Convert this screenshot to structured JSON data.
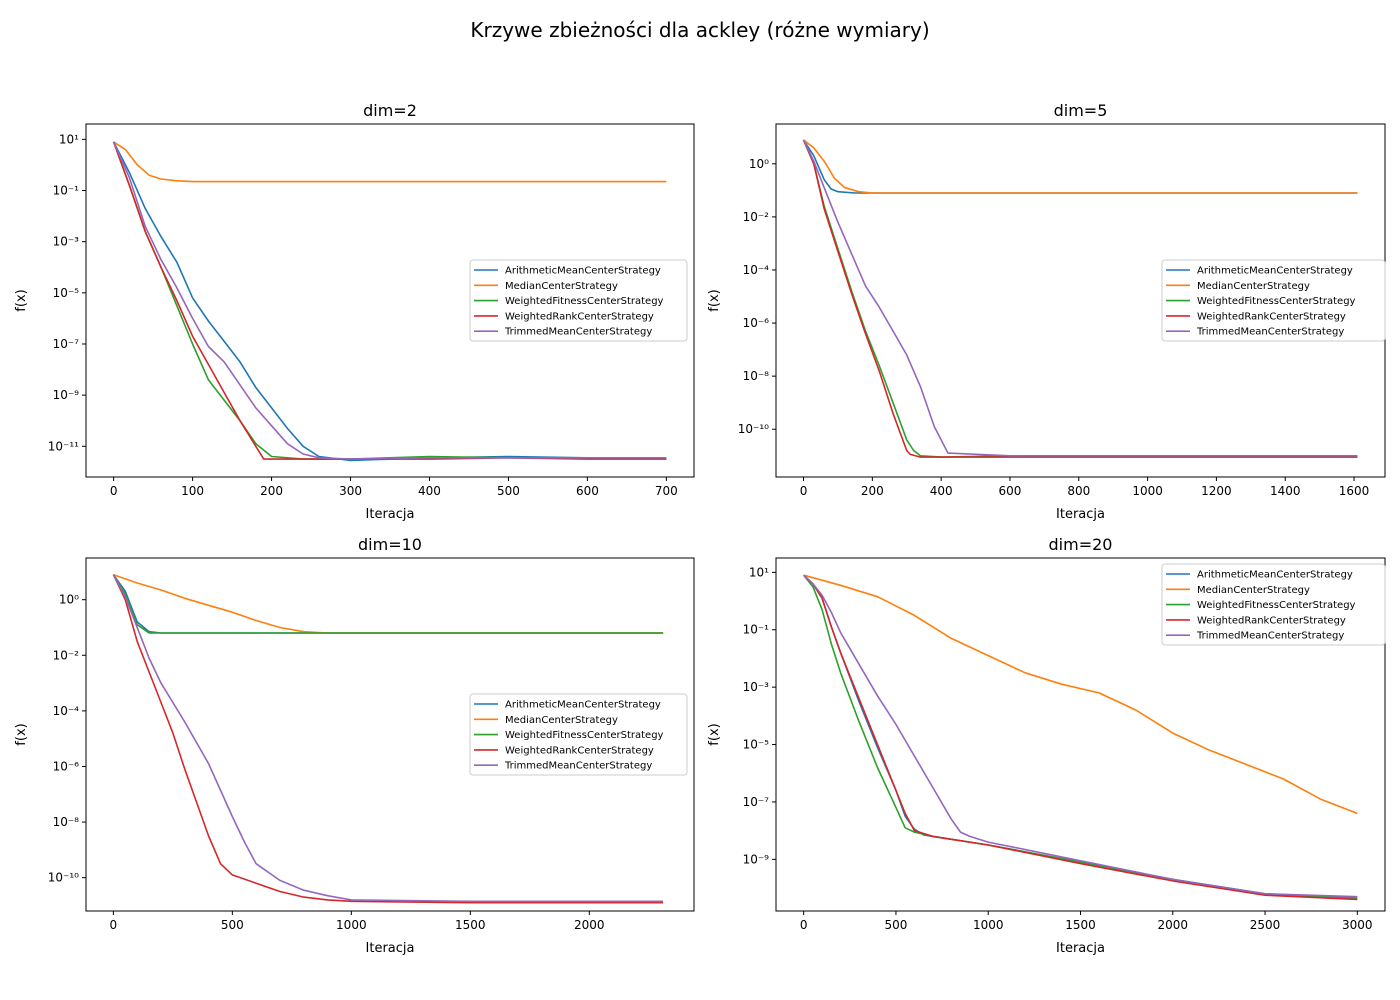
{
  "figure": {
    "suptitle": "Krzywe zbieżności dla ackley (różne wymiary)"
  },
  "series_colors": {
    "ArithmeticMeanCenterStrategy": "#1f77b4",
    "MedianCenterStrategy": "#ff7f0e",
    "WeightedFitnessCenterStrategy": "#2ca02c",
    "WeightedRankCenterStrategy": "#d62728",
    "TrimmedMeanCenterStrategy": "#9467bd"
  },
  "chart_data": [
    {
      "type": "line",
      "title": "dim=2",
      "xlabel": "Iteracja",
      "ylabel": "f(x)",
      "yscale": "log",
      "xlim": [
        -35,
        735
      ],
      "ylim_log10": [
        -12.2,
        1.6
      ],
      "xticks": [
        0,
        100,
        200,
        300,
        400,
        500,
        600,
        700
      ],
      "yticks_exp": [
        1,
        -1,
        -3,
        -5,
        -7,
        -9,
        -11
      ],
      "legend_position": "center-right",
      "series": [
        {
          "name": "ArithmeticMeanCenterStrategy",
          "x": [
            0,
            20,
            40,
            60,
            80,
            100,
            120,
            140,
            160,
            180,
            200,
            220,
            240,
            260,
            300,
            400,
            500,
            600,
            700
          ],
          "log10_y": [
            0.9,
            -0.3,
            -1.7,
            -2.8,
            -3.8,
            -5.2,
            -6.1,
            -6.9,
            -7.7,
            -8.7,
            -9.5,
            -10.3,
            -11.0,
            -11.4,
            -11.55,
            -11.45,
            -11.4,
            -11.45,
            -11.45
          ]
        },
        {
          "name": "MedianCenterStrategy",
          "x": [
            0,
            15,
            30,
            45,
            60,
            80,
            100,
            150,
            200,
            300,
            400,
            500,
            600,
            700
          ],
          "log10_y": [
            0.9,
            0.6,
            0.0,
            -0.4,
            -0.55,
            -0.62,
            -0.65,
            -0.65,
            -0.65,
            -0.65,
            -0.65,
            -0.65,
            -0.65,
            -0.65
          ]
        },
        {
          "name": "WeightedFitnessCenterStrategy",
          "x": [
            0,
            20,
            40,
            60,
            80,
            100,
            120,
            140,
            160,
            180,
            200,
            240,
            300,
            400,
            500,
            600,
            700
          ],
          "log10_y": [
            0.9,
            -0.8,
            -2.6,
            -4.0,
            -5.5,
            -7.0,
            -8.4,
            -9.2,
            -10.0,
            -10.9,
            -11.4,
            -11.5,
            -11.5,
            -11.4,
            -11.45,
            -11.45,
            -11.45
          ]
        },
        {
          "name": "WeightedRankCenterStrategy",
          "x": [
            0,
            20,
            40,
            60,
            80,
            100,
            120,
            140,
            160,
            180,
            190,
            200,
            240,
            300,
            400,
            500,
            600,
            700
          ],
          "log10_y": [
            0.9,
            -0.8,
            -2.6,
            -4.0,
            -5.3,
            -6.7,
            -7.8,
            -8.9,
            -10.0,
            -11.0,
            -11.5,
            -11.5,
            -11.5,
            -11.5,
            -11.5,
            -11.45,
            -11.5,
            -11.5
          ]
        },
        {
          "name": "TrimmedMeanCenterStrategy",
          "x": [
            0,
            20,
            40,
            60,
            80,
            100,
            120,
            140,
            160,
            180,
            200,
            220,
            240,
            260,
            300,
            400,
            500,
            600,
            700
          ],
          "log10_y": [
            0.9,
            -0.5,
            -2.4,
            -3.7,
            -4.8,
            -6.0,
            -7.1,
            -7.7,
            -8.6,
            -9.5,
            -10.2,
            -10.9,
            -11.3,
            -11.45,
            -11.5,
            -11.45,
            -11.45,
            -11.45,
            -11.45
          ]
        }
      ]
    },
    {
      "type": "line",
      "title": "dim=5",
      "xlabel": "Iteracja",
      "ylabel": "f(x)",
      "yscale": "log",
      "xlim": [
        -80,
        1690
      ],
      "ylim_log10": [
        -11.8,
        1.5
      ],
      "xticks": [
        0,
        200,
        400,
        600,
        800,
        1000,
        1200,
        1400,
        1600
      ],
      "yticks_exp": [
        0,
        -2,
        -4,
        -6,
        -8,
        -10
      ],
      "legend_position": "center-right",
      "series": [
        {
          "name": "ArithmeticMeanCenterStrategy",
          "x": [
            0,
            30,
            60,
            80,
            100,
            150,
            200,
            400,
            800,
            1200,
            1610
          ],
          "log10_y": [
            0.9,
            0.3,
            -0.6,
            -0.95,
            -1.05,
            -1.1,
            -1.1,
            -1.1,
            -1.1,
            -1.1,
            -1.1
          ]
        },
        {
          "name": "MedianCenterStrategy",
          "x": [
            0,
            30,
            60,
            90,
            120,
            160,
            200,
            400,
            800,
            1200,
            1610
          ],
          "log10_y": [
            0.9,
            0.6,
            0.1,
            -0.55,
            -0.9,
            -1.05,
            -1.1,
            -1.1,
            -1.1,
            -1.1,
            -1.1
          ]
        },
        {
          "name": "WeightedFitnessCenterStrategy",
          "x": [
            0,
            30,
            60,
            100,
            140,
            180,
            220,
            260,
            300,
            320,
            340,
            400,
            600,
            1000,
            1610
          ],
          "log10_y": [
            0.9,
            0.0,
            -1.6,
            -3.2,
            -4.8,
            -6.3,
            -7.6,
            -9.0,
            -10.4,
            -10.8,
            -11.0,
            -11.05,
            -11.0,
            -11.0,
            -11.0
          ]
        },
        {
          "name": "WeightedRankCenterStrategy",
          "x": [
            0,
            30,
            60,
            100,
            140,
            180,
            220,
            260,
            300,
            310,
            340,
            400,
            600,
            1000,
            1610
          ],
          "log10_y": [
            0.9,
            0.0,
            -1.7,
            -3.3,
            -4.9,
            -6.4,
            -7.8,
            -9.4,
            -10.8,
            -10.95,
            -11.05,
            -11.05,
            -11.05,
            -11.05,
            -11.05
          ]
        },
        {
          "name": "TrimmedMeanCenterStrategy",
          "x": [
            0,
            30,
            60,
            100,
            140,
            180,
            220,
            260,
            300,
            340,
            380,
            420,
            600,
            1000,
            1610
          ],
          "log10_y": [
            0.9,
            0.1,
            -0.9,
            -2.2,
            -3.4,
            -4.6,
            -5.4,
            -6.3,
            -7.2,
            -8.4,
            -9.9,
            -10.9,
            -11.0,
            -11.0,
            -11.0
          ]
        }
      ]
    },
    {
      "type": "line",
      "title": "dim=10",
      "xlabel": "Iteracja",
      "ylabel": "f(x)",
      "yscale": "log",
      "xlim": [
        -115,
        2440
      ],
      "ylim_log10": [
        -11.2,
        1.5
      ],
      "xticks": [
        0,
        500,
        1000,
        1500,
        2000
      ],
      "yticks_exp": [
        0,
        -2,
        -4,
        -6,
        -8,
        -10
      ],
      "legend_position": "center-right",
      "series": [
        {
          "name": "ArithmeticMeanCenterStrategy",
          "x": [
            0,
            50,
            100,
            150,
            200,
            400,
            800,
            1200,
            1600,
            2000,
            2310
          ],
          "log10_y": [
            0.9,
            0.3,
            -0.8,
            -1.15,
            -1.2,
            -1.2,
            -1.2,
            -1.2,
            -1.2,
            -1.2,
            -1.2
          ]
        },
        {
          "name": "MedianCenterStrategy",
          "x": [
            0,
            100,
            200,
            300,
            400,
            500,
            600,
            700,
            800,
            900,
            1000,
            1500,
            2000,
            2310
          ],
          "log10_y": [
            0.9,
            0.6,
            0.35,
            0.05,
            -0.2,
            -0.45,
            -0.75,
            -1.0,
            -1.15,
            -1.2,
            -1.2,
            -1.2,
            -1.2,
            -1.2
          ]
        },
        {
          "name": "WeightedFitnessCenterStrategy",
          "x": [
            0,
            50,
            100,
            150,
            200,
            400,
            800,
            1200,
            1600,
            2000,
            2310
          ],
          "log10_y": [
            0.9,
            0.2,
            -0.9,
            -1.2,
            -1.2,
            -1.2,
            -1.2,
            -1.2,
            -1.2,
            -1.2,
            -1.2
          ]
        },
        {
          "name": "WeightedRankCenterStrategy",
          "x": [
            0,
            50,
            100,
            150,
            200,
            250,
            300,
            350,
            400,
            450,
            500,
            600,
            700,
            800,
            900,
            1000,
            1500,
            2000,
            2310
          ],
          "log10_y": [
            0.9,
            0.0,
            -1.5,
            -2.6,
            -3.7,
            -4.8,
            -6.1,
            -7.3,
            -8.5,
            -9.5,
            -9.9,
            -10.2,
            -10.5,
            -10.7,
            -10.8,
            -10.85,
            -10.9,
            -10.9,
            -10.9
          ]
        },
        {
          "name": "TrimmedMeanCenterStrategy",
          "x": [
            0,
            50,
            100,
            150,
            200,
            300,
            400,
            500,
            550,
            600,
            700,
            800,
            900,
            1000,
            1500,
            2000,
            2310
          ],
          "log10_y": [
            0.9,
            0.1,
            -1.0,
            -2.1,
            -3.0,
            -4.4,
            -5.9,
            -7.8,
            -8.7,
            -9.5,
            -10.1,
            -10.45,
            -10.65,
            -10.8,
            -10.85,
            -10.85,
            -10.85
          ]
        }
      ]
    },
    {
      "type": "line",
      "title": "dim=20",
      "xlabel": "Iteracja",
      "ylabel": "f(x)",
      "yscale": "log",
      "xlim": [
        -150,
        3150
      ],
      "ylim_log10": [
        -10.8,
        1.5
      ],
      "xticks": [
        0,
        500,
        1000,
        1500,
        2000,
        2500,
        3000
      ],
      "yticks_exp": [
        1,
        -1,
        -3,
        -5,
        -7,
        -9
      ],
      "legend_position": "top-right",
      "series": [
        {
          "name": "ArithmeticMeanCenterStrategy",
          "x": [
            0,
            50,
            100,
            150,
            200,
            300,
            400,
            500,
            550,
            600,
            650,
            700,
            1000,
            1500,
            2000,
            2500,
            3000
          ],
          "log10_y": [
            0.9,
            0.6,
            0.1,
            -0.9,
            -1.8,
            -3.5,
            -5.1,
            -6.6,
            -7.5,
            -7.95,
            -8.15,
            -8.2,
            -8.5,
            -9.1,
            -9.7,
            -10.2,
            -10.35
          ]
        },
        {
          "name": "MedianCenterStrategy",
          "x": [
            0,
            200,
            400,
            600,
            800,
            1000,
            1200,
            1400,
            1600,
            1800,
            2000,
            2200,
            2400,
            2600,
            2800,
            3000
          ],
          "log10_y": [
            0.9,
            0.55,
            0.15,
            -0.5,
            -1.3,
            -1.9,
            -2.5,
            -2.9,
            -3.2,
            -3.8,
            -4.6,
            -5.2,
            -5.7,
            -6.2,
            -6.9,
            -7.4
          ]
        },
        {
          "name": "WeightedFitnessCenterStrategy",
          "x": [
            0,
            50,
            100,
            150,
            200,
            300,
            400,
            500,
            550,
            600,
            700,
            1000,
            1500,
            2000,
            2500,
            3000
          ],
          "log10_y": [
            0.9,
            0.5,
            -0.3,
            -1.5,
            -2.5,
            -4.2,
            -5.8,
            -7.2,
            -7.9,
            -8.05,
            -8.2,
            -8.5,
            -9.1,
            -9.7,
            -10.2,
            -10.35
          ]
        },
        {
          "name": "WeightedRankCenterStrategy",
          "x": [
            0,
            50,
            100,
            150,
            200,
            300,
            400,
            500,
            550,
            600,
            700,
            1000,
            1500,
            2000,
            2500,
            3000
          ],
          "log10_y": [
            0.9,
            0.6,
            0.1,
            -0.9,
            -1.8,
            -3.4,
            -5.0,
            -6.6,
            -7.4,
            -8.0,
            -8.2,
            -8.5,
            -9.15,
            -9.75,
            -10.25,
            -10.4
          ]
        },
        {
          "name": "TrimmedMeanCenterStrategy",
          "x": [
            0,
            50,
            100,
            150,
            200,
            300,
            400,
            500,
            600,
            700,
            800,
            850,
            900,
            1000,
            1500,
            2000,
            2500,
            3000
          ],
          "log10_y": [
            0.9,
            0.6,
            0.2,
            -0.4,
            -1.1,
            -2.2,
            -3.3,
            -4.3,
            -5.4,
            -6.5,
            -7.6,
            -8.05,
            -8.2,
            -8.4,
            -9.05,
            -9.7,
            -10.2,
            -10.3
          ]
        }
      ]
    }
  ]
}
